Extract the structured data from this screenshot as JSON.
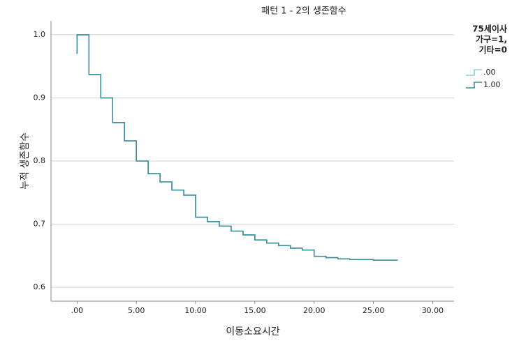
{
  "chart_data": {
    "type": "line",
    "step": "post",
    "title": "패턴 1 - 2의 생존함수",
    "x_label": "이동소요시간",
    "y_label": "누적 생존함수",
    "legend_title": [
      "75세이사",
      "가구=1,",
      "기타=0"
    ],
    "x": [
      0,
      0,
      1,
      2,
      3,
      4,
      5,
      6,
      7,
      8,
      9,
      10,
      11,
      12,
      13,
      14,
      15,
      16,
      17,
      18,
      19,
      20,
      21,
      22,
      23,
      25,
      27
    ],
    "series": [
      {
        "name": ".00",
        "color": "#86d3dc",
        "values": [
          0.97,
          1.0,
          0.937,
          0.9,
          0.861,
          0.832,
          0.8,
          0.78,
          0.767,
          0.754,
          0.746,
          0.711,
          0.704,
          0.697,
          0.689,
          0.683,
          0.675,
          0.67,
          0.666,
          0.662,
          0.659,
          0.649,
          0.647,
          0.645,
          0.644,
          0.643,
          0.642
        ]
      },
      {
        "name": "1.00",
        "color": "#3b8f9b",
        "values": [
          0.97,
          1.0,
          0.937,
          0.9,
          0.861,
          0.832,
          0.8,
          0.78,
          0.767,
          0.754,
          0.746,
          0.711,
          0.704,
          0.697,
          0.689,
          0.683,
          0.675,
          0.67,
          0.666,
          0.662,
          0.659,
          0.649,
          0.647,
          0.645,
          0.644,
          0.643,
          0.642
        ]
      }
    ],
    "xlim": [
      -2.2,
      31.8
    ],
    "xticks": [
      {
        "value": 0,
        "label": ".00"
      },
      {
        "value": 5,
        "label": "5.00"
      },
      {
        "value": 10,
        "label": "10.00"
      },
      {
        "value": 15,
        "label": "15.00"
      },
      {
        "value": 20,
        "label": "20.00"
      },
      {
        "value": 25,
        "label": "25.00"
      },
      {
        "value": 30,
        "label": "30.00"
      }
    ],
    "ylim": [
      0.578,
      1.022
    ],
    "yticks": [
      0.6,
      0.7,
      0.8,
      0.9,
      {
        "value": 1.0,
        "label": "1.0"
      }
    ],
    "grid": true
  }
}
